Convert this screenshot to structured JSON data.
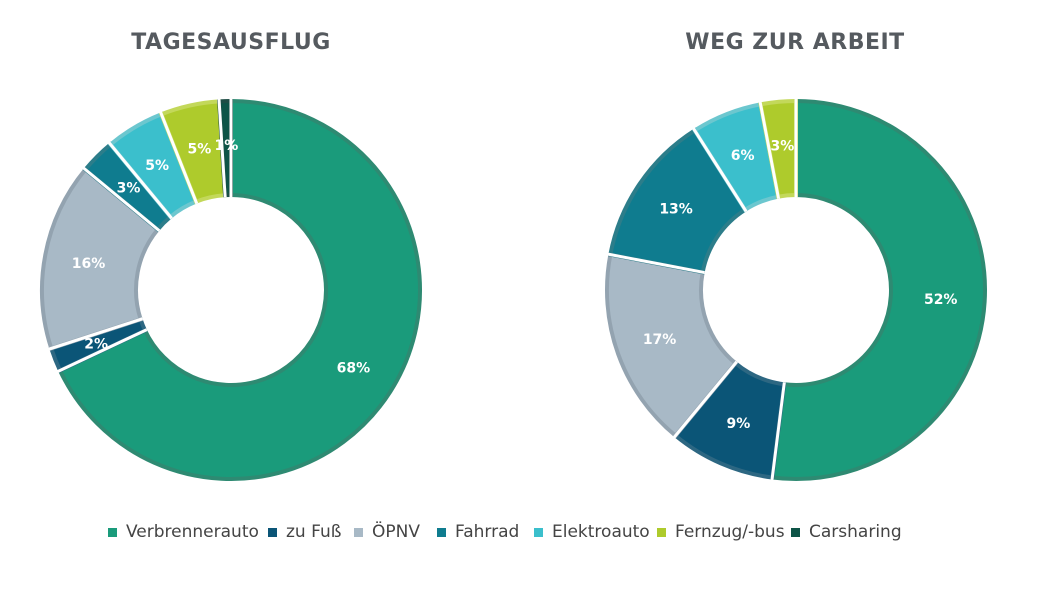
{
  "chart_data": [
    {
      "type": "pie",
      "title": "TAGESAUSFLUG",
      "categories": [
        "Verbrennerauto",
        "zu Fuß",
        "ÖPNV",
        "Fahrrad",
        "Elektroauto",
        "Fernzug/-bus",
        "Carsharing"
      ],
      "values": [
        68,
        2,
        16,
        3,
        5,
        5,
        1
      ],
      "labels": [
        "68%",
        "2%",
        "16%",
        "3%",
        "5%",
        "5%",
        "1%"
      ]
    },
    {
      "type": "pie",
      "title": "WEG ZUR ARBEIT",
      "categories": [
        "Verbrennerauto",
        "zu Fuß",
        "ÖPNV",
        "Fahrrad",
        "Elektroauto",
        "Fernzug/-bus",
        "Carsharing"
      ],
      "values": [
        52,
        9,
        17,
        13,
        6,
        3,
        0
      ],
      "labels": [
        "52%",
        "9%",
        "17%",
        "13%",
        "6%",
        "3%",
        ""
      ]
    }
  ],
  "legend": {
    "items": [
      {
        "label": "Verbrennerauto",
        "color": "#1a9b7b"
      },
      {
        "label": "zu Fuß",
        "color": "#0b5577"
      },
      {
        "label": "ÖPNV",
        "color": "#a8b9c6"
      },
      {
        "label": "Fahrrad",
        "color": "#0f7c8f"
      },
      {
        "label": "Elektroauto",
        "color": "#3bbfcc"
      },
      {
        "label": "Fernzug/-bus",
        "color": "#aecb2c"
      },
      {
        "label": "Carsharing",
        "color": "#0e5447"
      }
    ]
  },
  "colors": {
    "borders": [
      "#2e8a72",
      "#2d6782",
      "#93a3b0",
      "#2c7d8a",
      "#6cc7cf",
      "#c3d85a",
      "#1e4d45"
    ],
    "title_text": "#555a5f",
    "data_label_text": "#ffffff"
  }
}
